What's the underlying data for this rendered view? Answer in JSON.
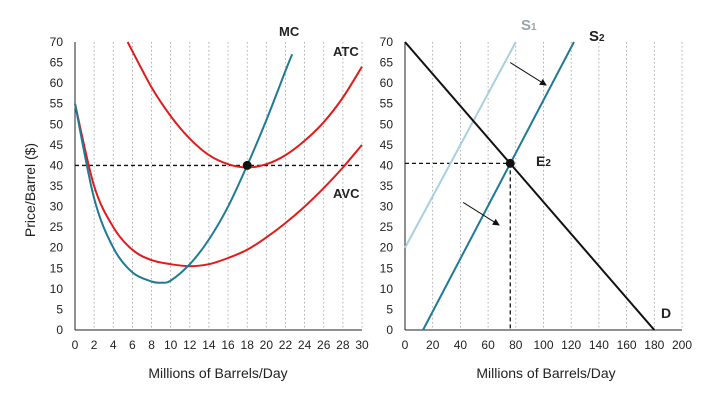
{
  "colors": {
    "mc": "#1f7a96",
    "atc": "#e11b1b",
    "avc": "#e11b1b",
    "s1": "#a9cfe0",
    "s2": "#1f7a96",
    "demand": "#111111",
    "grid": "#9a9a9a",
    "guide": "#111111"
  },
  "chart_data": [
    {
      "type": "line",
      "xlabel": "Millions of Barrels/Day",
      "ylabel": "Price/Barrel ($)",
      "xlim": [
        0,
        30
      ],
      "ylim": [
        0,
        70
      ],
      "x_ticks": [
        0,
        2,
        4,
        6,
        8,
        10,
        12,
        14,
        16,
        18,
        20,
        22,
        24,
        26,
        28,
        30
      ],
      "y_ticks": [
        0,
        5,
        10,
        15,
        20,
        25,
        30,
        35,
        40,
        45,
        50,
        55,
        60,
        65,
        70
      ],
      "grid": "vertical dotted",
      "series": [
        {
          "name": "MC",
          "x": [
            0,
            2,
            4,
            6,
            8,
            9,
            10,
            12,
            14,
            16,
            18,
            20,
            22,
            22.7
          ],
          "y": [
            55,
            32,
            20,
            14,
            11.8,
            11.5,
            12,
            16,
            22,
            30,
            40,
            51,
            63,
            67
          ]
        },
        {
          "name": "ATC",
          "x": [
            5.5,
            8,
            10,
            12,
            14,
            16,
            18,
            20,
            22,
            24,
            26,
            28,
            30
          ],
          "y": [
            70,
            59,
            52,
            46.5,
            42.5,
            40.3,
            39.5,
            40.3,
            42.5,
            46,
            50.5,
            56.5,
            64
          ]
        },
        {
          "name": "AVC",
          "x": [
            0,
            2,
            4,
            6,
            8,
            10,
            12,
            14,
            16,
            18,
            20,
            22,
            24,
            26,
            28,
            30
          ],
          "y": [
            55,
            35,
            25,
            19.5,
            17,
            16,
            15.5,
            16,
            17.5,
            19.5,
            22.5,
            26,
            30,
            34.5,
            39.5,
            45
          ]
        }
      ],
      "guides": [
        {
          "x": 18,
          "y": 40
        }
      ],
      "points": [
        {
          "x": 18,
          "y": 40
        }
      ]
    },
    {
      "type": "line",
      "xlabel": "Millions of Barrels/Day",
      "ylabel": "",
      "xlim": [
        0,
        200
      ],
      "ylim": [
        0,
        70
      ],
      "x_ticks": [
        0,
        20,
        40,
        60,
        80,
        100,
        120,
        140,
        160,
        180,
        200
      ],
      "y_ticks": [
        0,
        5,
        10,
        15,
        20,
        25,
        30,
        35,
        40,
        45,
        50,
        55,
        60,
        65,
        70
      ],
      "grid": "vertical dotted",
      "series": [
        {
          "name": "S1",
          "x": [
            0,
            80
          ],
          "y": [
            20,
            70
          ]
        },
        {
          "name": "S2",
          "x": [
            13,
            122
          ],
          "y": [
            0,
            70
          ]
        },
        {
          "name": "D",
          "x": [
            0,
            180
          ],
          "y": [
            70,
            0
          ]
        }
      ],
      "guides": [
        {
          "x": 76,
          "y": 40.5
        }
      ],
      "points": [
        {
          "x": 76,
          "y": 40.5,
          "label": "E2"
        }
      ],
      "arrows": [
        {
          "from": [
            42,
            31
          ],
          "to": [
            68,
            25.5
          ]
        },
        {
          "from": [
            76,
            65
          ],
          "to": [
            102,
            59.5
          ]
        }
      ]
    }
  ],
  "labels": {
    "left_y": "Price/Barrel ($)",
    "left_x": "Millions of Barrels/Day",
    "right_x": "Millions of Barrels/Day",
    "mc": "MC",
    "atc": "ATC",
    "avc": "AVC",
    "s1_main": "S",
    "s1_sub": "1",
    "s2_main": "S",
    "s2_sub": "2",
    "e2_main": "E",
    "e2_sub": "2",
    "d": "D"
  }
}
